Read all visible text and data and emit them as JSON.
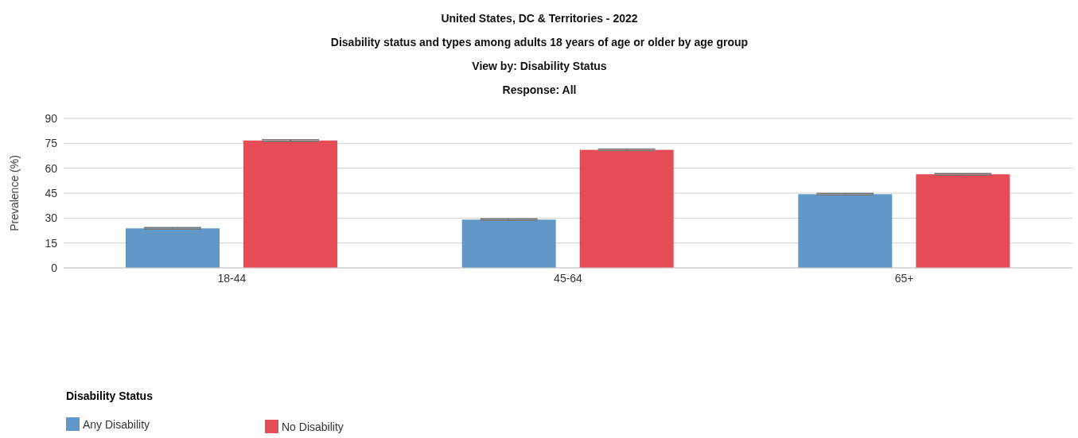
{
  "chart_data": {
    "type": "bar",
    "title": "United States, DC & Territories - 2022",
    "subtitle": "Disability status and types among adults 18 years of age or older by age group",
    "annotations": [
      "View by: Disability Status",
      "Response: All"
    ],
    "ylabel": "Prevalence (%)",
    "legend_title": "Disability Status",
    "categories": [
      "18-44",
      "45-64",
      "65+"
    ],
    "series": [
      {
        "name": "Any Disability",
        "color": "#6198c8",
        "values": [
          23.8,
          29.1,
          44.4
        ],
        "errors": [
          0.5,
          0.5,
          0.5
        ]
      },
      {
        "name": "No Disability",
        "color": "#e64c56",
        "values": [
          76.7,
          71.1,
          56.4
        ],
        "errors": [
          0.5,
          0.5,
          0.5
        ]
      }
    ],
    "ylim": [
      0,
      90
    ],
    "yticks": [
      0,
      15,
      30,
      45,
      60,
      75,
      90
    ],
    "grid": "y",
    "legend": "bottom left"
  }
}
